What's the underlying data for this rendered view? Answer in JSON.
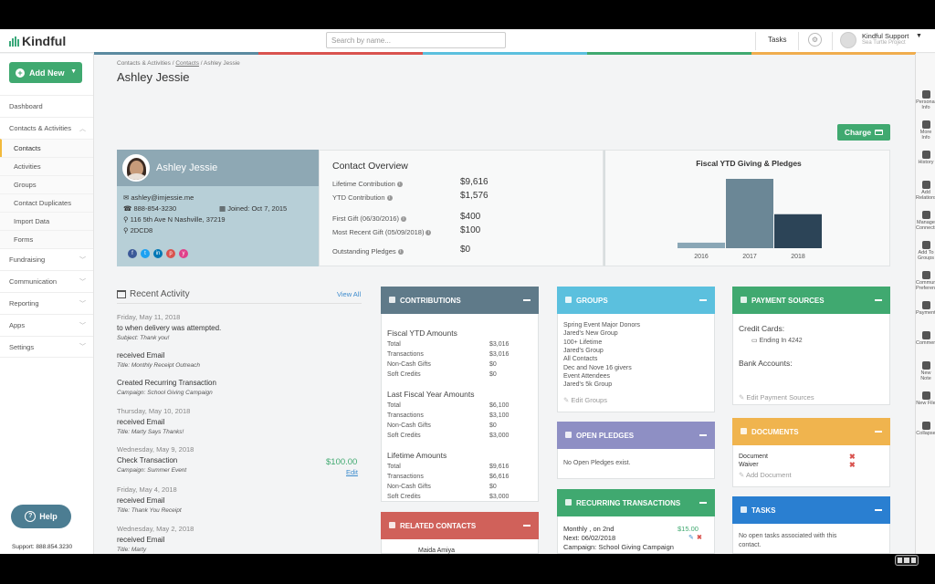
{
  "app": {
    "logo_text": "Kindful",
    "search_placeholder": "Search by name...",
    "tasks_label": "Tasks",
    "user_name": "Kindful Support",
    "user_org": "Sea Turtle Project",
    "brand_color": "#40a970"
  },
  "sidebar": {
    "add_new": "Add New",
    "items": [
      {
        "label": "Dashboard"
      },
      {
        "label": "Contacts & Activities"
      },
      {
        "label": "Contacts"
      },
      {
        "label": "Activities"
      },
      {
        "label": "Groups"
      },
      {
        "label": "Contact Duplicates"
      },
      {
        "label": "Import Data"
      },
      {
        "label": "Forms"
      },
      {
        "label": "Fundraising"
      },
      {
        "label": "Communication"
      },
      {
        "label": "Reporting"
      },
      {
        "label": "Apps"
      },
      {
        "label": "Settings"
      }
    ],
    "help": "Help",
    "support": "Support: 888.854.3230"
  },
  "breadcrumb": {
    "root": "Contacts & Activities",
    "link": "Contacts",
    "current": "Ashley Jessie"
  },
  "page_title": "Ashley Jessie",
  "charge_label": "Charge",
  "profile": {
    "first": "Ashley",
    "last": "Jessie",
    "email": "ashley@imjessie.me",
    "phone": "888-854-3230",
    "joined": "Joined: Oct 7, 2015",
    "address": "116 5th Ave N   Nashville, 37219",
    "id": "2DCD8",
    "social": [
      "f",
      "t",
      "in",
      "p",
      "y"
    ]
  },
  "overview": {
    "title": "Contact Overview",
    "rows": [
      {
        "label": "Lifetime Contribution",
        "value": "$9,616"
      },
      {
        "label": "YTD Contribution",
        "value": "$1,576"
      },
      {
        "label": "First Gift (06/30/2016)",
        "value": "$400"
      },
      {
        "label": "Most Recent Gift (05/09/2018)",
        "value": "$100"
      },
      {
        "label": "Outstanding Pledges",
        "value": "$0"
      }
    ]
  },
  "chart_data": {
    "type": "bar",
    "title": "Fiscal YTD Giving & Pledges",
    "categories": [
      "2016",
      "2017",
      "2018"
    ],
    "series": [
      {
        "values": [
          0.08,
          1.0,
          0.49
        ],
        "colors": [
          "#8aa7b6",
          "#6b8796",
          "#2c4457"
        ]
      }
    ]
  },
  "activity": {
    "title": "Recent Activity",
    "view_all": "View All",
    "lines": [
      {
        "cls": "date",
        "text": "Friday, May 11, 2018"
      },
      {
        "cls": "",
        "text": "to when delivery was attempted."
      },
      {
        "cls": "sub",
        "text": "Subject: Thank you!"
      },
      {
        "cls": "",
        "text": "received Email"
      },
      {
        "cls": "sub",
        "text": "Title: Monthly Receipt Outreach"
      },
      {
        "cls": "",
        "text": "Created Recurring Transaction"
      },
      {
        "cls": "sub",
        "text": "Campaign: School Giving Campaign"
      },
      {
        "cls": "date",
        "text": "Thursday, May 10, 2018"
      },
      {
        "cls": "",
        "text": "received Email"
      },
      {
        "cls": "sub",
        "text": "Title: Marty Says Thanks!"
      },
      {
        "cls": "date",
        "text": "Wednesday, May 9, 2018"
      },
      {
        "cls": "",
        "text": "Check Transaction"
      },
      {
        "cls": "sub",
        "text": "Campaign: Summer Event"
      },
      {
        "cls": "date",
        "text": "Friday, May 4, 2018"
      },
      {
        "cls": "",
        "text": "received Email"
      },
      {
        "cls": "sub",
        "text": "Title: Thank You Receipt"
      },
      {
        "cls": "date",
        "text": "Wednesday, May 2, 2018"
      },
      {
        "cls": "",
        "text": "received Email"
      },
      {
        "cls": "sub",
        "text": "Title: Marty"
      }
    ],
    "check_amount": "$100.00",
    "edit": "Edit"
  },
  "contributions": {
    "title": "CONTRIBUTIONS",
    "sections": [
      {
        "heading": "Fiscal YTD Amounts",
        "rows": [
          [
            "Total",
            "$3,016"
          ],
          [
            "Transactions",
            "$3,016"
          ],
          [
            "Non-Cash Gifts",
            "$0"
          ],
          [
            "Soft Credits",
            "$0"
          ]
        ]
      },
      {
        "heading": "Last Fiscal Year Amounts",
        "rows": [
          [
            "Total",
            "$6,100"
          ],
          [
            "Transactions",
            "$3,100"
          ],
          [
            "Non-Cash Gifts",
            "$0"
          ],
          [
            "Soft Credits",
            "$3,000"
          ]
        ]
      },
      {
        "heading": "Lifetime Amounts",
        "rows": [
          [
            "Total",
            "$9,616"
          ],
          [
            "Transactions",
            "$6,616"
          ],
          [
            "Non-Cash Gifts",
            "$0"
          ],
          [
            "Soft Credits",
            "$3,000"
          ]
        ]
      }
    ]
  },
  "related": {
    "title": "RELATED CONTACTS",
    "first": "Maida Amiya"
  },
  "groups": {
    "title": "GROUPS",
    "items": [
      "Spring Event Major Donors",
      "Jared's New Group",
      "100+ Lifetime",
      "Jared's Group",
      "All Contacts",
      "Dec and Nove 16 givers",
      "Event Attendees",
      "Jared's 5k Group"
    ],
    "edit": "Edit Groups"
  },
  "pledges": {
    "title": "OPEN PLEDGES",
    "empty": "No Open Pledges exist."
  },
  "recurring": {
    "title": "RECURRING TRANSACTIONS",
    "freq": "Monthly , on 2nd",
    "amount": "$15.00",
    "next": "Next: 06/02/2018",
    "campaign_label": "Campaign:",
    "campaign": "School Giving Campaign"
  },
  "payment": {
    "title": "PAYMENT SOURCES",
    "cards": "Credit Cards:",
    "ending": "Ending In 4242",
    "bank": "Bank Accounts:",
    "edit": "Edit Payment Sources"
  },
  "documents": {
    "title": "DOCUMENTS",
    "items": [
      "Document",
      "Waiver"
    ],
    "add": "Add Document"
  },
  "tasks": {
    "title": "TASKS",
    "empty1": "No open tasks associated with this",
    "empty2": "contact."
  },
  "rightbar": [
    "Personal Info",
    "More Info",
    "History",
    "Add Relationship",
    "Manage Connections",
    "Add To Groups",
    "Communication Preferences",
    "Payments",
    "Comments",
    "New Note",
    "New File",
    "Collapse"
  ]
}
